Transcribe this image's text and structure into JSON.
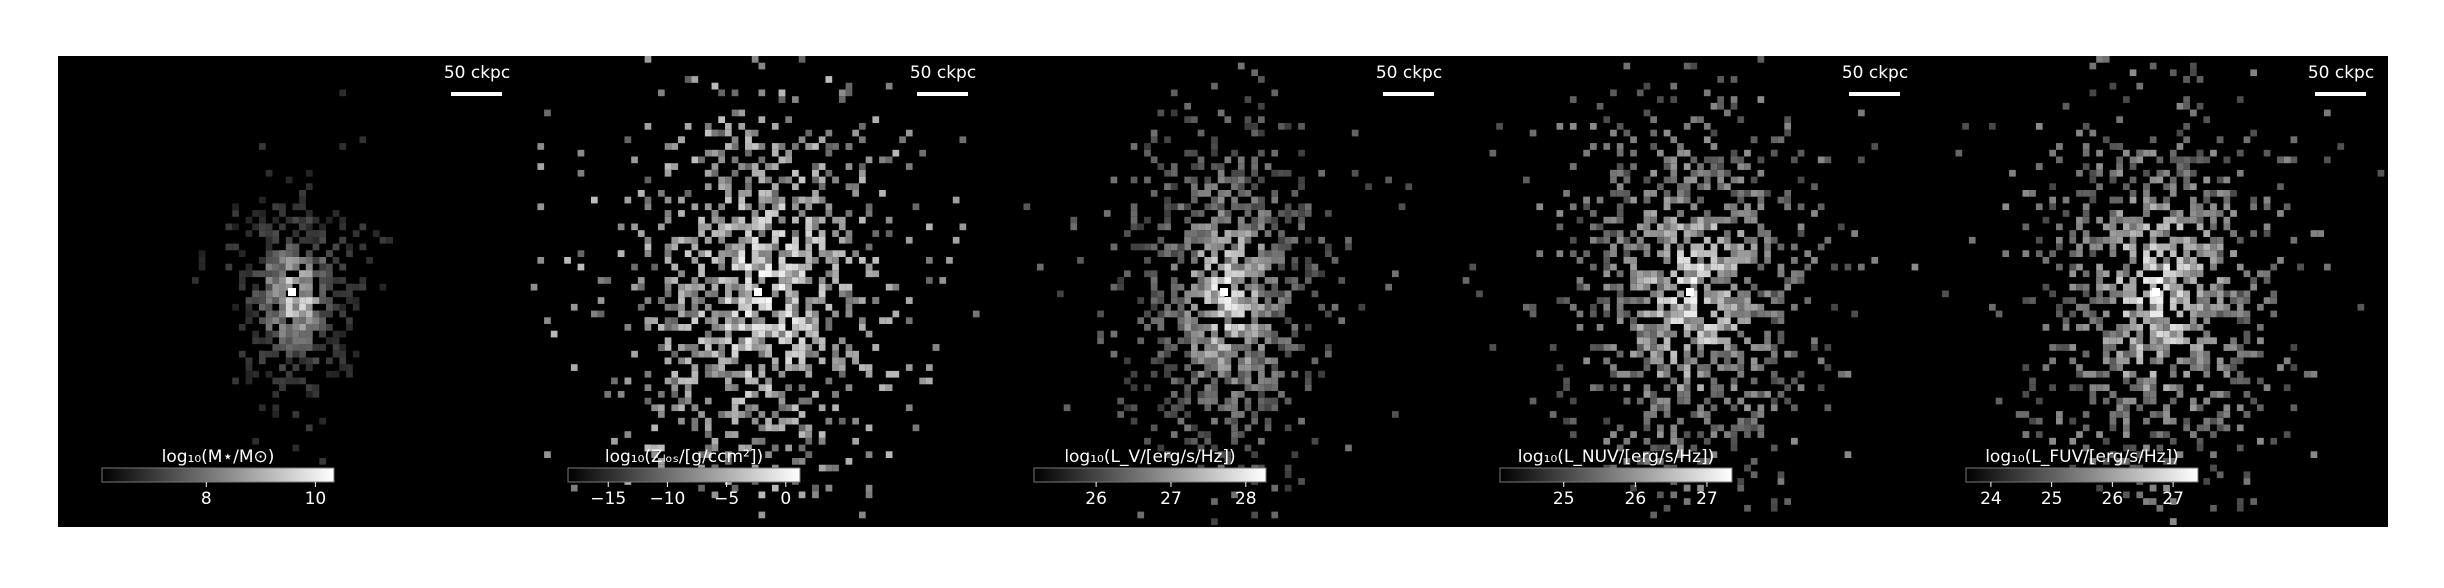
{
  "panels": [
    {
      "colorbar": {
        "label": "log₁₀(M⋆/M⊙)",
        "range": [
          6.09,
          10.34
        ],
        "ticks": [
          8,
          10
        ]
      },
      "scalebar": "50 ckpc"
    },
    {
      "colorbar": {
        "label": "log₁₀(Zₗₒₛ/[g/ccm²])",
        "range": [
          -18.4,
          1.2
        ],
        "ticks": [
          {
            "value": -15,
            "label": "−15"
          },
          {
            "value": -10,
            "label": "−10"
          },
          {
            "value": -5,
            "label": "−5"
          },
          0
        ]
      },
      "scalebar": "50 ckpc"
    },
    {
      "colorbar": {
        "label": "log₁₀(L_V/[erg/s/Hz])",
        "range": [
          25.17,
          28.27
        ],
        "ticks": [
          26,
          27,
          28
        ]
      },
      "scalebar": "50 ckpc"
    },
    {
      "colorbar": {
        "label": "log₁₀(L_NUV/[erg/s/Hz])",
        "range": [
          24.11,
          27.35
        ],
        "ticks": [
          25,
          26,
          27
        ]
      },
      "scalebar": "50 ckpc"
    },
    {
      "colorbar": {
        "label": "log₁₀(L_FUV/[erg/s/Hz])",
        "range": [
          23.59,
          27.41
        ],
        "ticks": [
          24,
          25,
          26,
          27
        ]
      },
      "scalebar": "50 ckpc"
    }
  ]
}
